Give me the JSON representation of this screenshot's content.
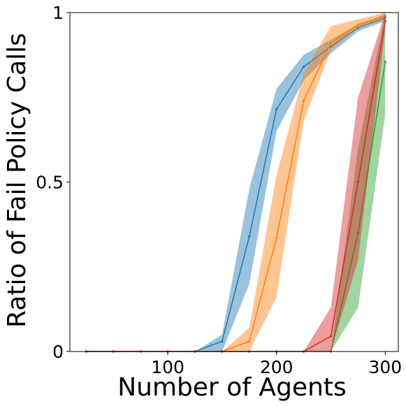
{
  "chart_data": {
    "type": "line",
    "title": "",
    "xlabel": "Number of Agents",
    "ylabel": "Ratio of Fail Policy Calls",
    "xlim": [
      10,
      312
    ],
    "ylim": [
      0,
      1
    ],
    "xticks": [
      {
        "value": 100,
        "label": "100"
      },
      {
        "value": 200,
        "label": "200"
      },
      {
        "value": 300,
        "label": "300"
      }
    ],
    "yticks": [
      {
        "value": 0,
        "label": "0"
      },
      {
        "value": 0.5,
        "label": "0.5"
      },
      {
        "value": 1,
        "label": "1"
      }
    ],
    "grid": false,
    "legend": "none",
    "x": [
      25,
      50,
      75,
      100,
      125,
      150,
      175,
      200,
      225,
      250,
      275,
      300
    ],
    "series": [
      {
        "color": "#1f77b4",
        "values": [
          0,
          0,
          0,
          0,
          0,
          0.03,
          0.34,
          0.715,
          0.84,
          0.9,
          0.955,
          0.985
        ],
        "lower": [
          0,
          0,
          0,
          0,
          0,
          0,
          0.2,
          0.65,
          0.8,
          0.88,
          0.945,
          0.975
        ],
        "upper": [
          0,
          0,
          0,
          0,
          0,
          0.05,
          0.48,
          0.775,
          0.875,
          0.92,
          0.965,
          0.995
        ]
      },
      {
        "color": "#ff7f0e",
        "values": [
          0,
          0,
          0,
          0,
          0,
          0,
          0.03,
          0.335,
          0.74,
          0.91,
          0.965,
          0.99
        ],
        "lower": [
          0,
          0,
          0,
          0,
          0,
          0,
          0,
          0.16,
          0.68,
          0.89,
          0.955,
          0.98
        ],
        "upper": [
          0,
          0,
          0,
          0,
          0,
          0,
          0.07,
          0.52,
          0.82,
          0.96,
          0.98,
          1.0
        ]
      },
      {
        "color": "#2ca02c",
        "values": [
          0,
          0,
          0,
          0,
          0,
          0,
          0,
          0,
          0,
          0,
          0.35,
          0.855
        ],
        "lower": [
          0,
          0,
          0,
          0,
          0,
          0,
          0,
          0,
          0,
          0,
          0.13,
          0.7
        ],
        "upper": [
          0,
          0,
          0,
          0,
          0,
          0,
          0,
          0,
          0,
          0,
          0.6,
          1.0
        ]
      },
      {
        "color": "#d62728",
        "values": [
          0,
          0,
          0,
          0,
          0,
          0,
          0,
          0,
          0,
          0.045,
          0.5,
          0.975
        ],
        "lower": [
          0,
          0,
          0,
          0,
          0,
          0,
          0,
          0,
          0,
          0,
          0.27,
          0.95
        ],
        "upper": [
          0,
          0,
          0,
          0,
          0,
          0,
          0,
          0,
          0,
          0.13,
          0.75,
          1.0
        ]
      }
    ]
  }
}
